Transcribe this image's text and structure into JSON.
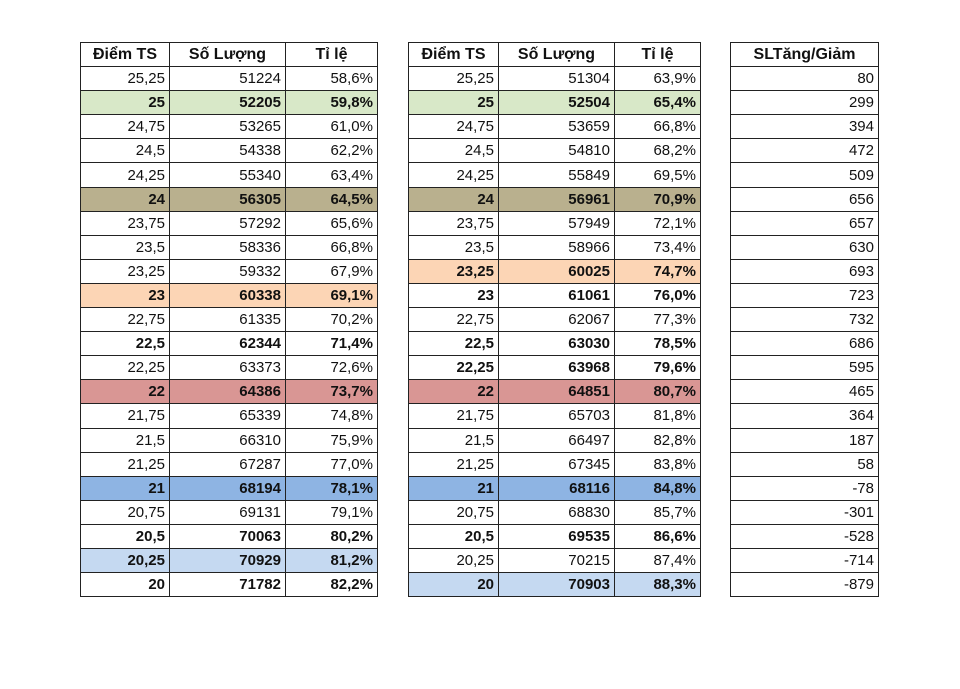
{
  "colors": {
    "green": "#d8e8c8",
    "olive": "#b9b08e",
    "peach": "#fcd5b5",
    "rose": "#d99694",
    "blue": "#8eb4e3",
    "light_blue": "#c5d9f1"
  },
  "table1": {
    "headers": [
      "Điểm TS",
      "Số Lượng",
      "Tỉ lệ"
    ],
    "rows": [
      {
        "diem": "25,25",
        "sl": "51224",
        "tl": "58,6%",
        "bold": false,
        "bg": null
      },
      {
        "diem": "25",
        "sl": "52205",
        "tl": "59,8%",
        "bold": true,
        "bg": "green"
      },
      {
        "diem": "24,75",
        "sl": "53265",
        "tl": "61,0%",
        "bold": false,
        "bg": null
      },
      {
        "diem": "24,5",
        "sl": "54338",
        "tl": "62,2%",
        "bold": false,
        "bg": null
      },
      {
        "diem": "24,25",
        "sl": "55340",
        "tl": "63,4%",
        "bold": false,
        "bg": null
      },
      {
        "diem": "24",
        "sl": "56305",
        "tl": "64,5%",
        "bold": true,
        "bg": "olive"
      },
      {
        "diem": "23,75",
        "sl": "57292",
        "tl": "65,6%",
        "bold": false,
        "bg": null
      },
      {
        "diem": "23,5",
        "sl": "58336",
        "tl": "66,8%",
        "bold": false,
        "bg": null
      },
      {
        "diem": "23,25",
        "sl": "59332",
        "tl": "67,9%",
        "bold": false,
        "bg": null
      },
      {
        "diem": "23",
        "sl": "60338",
        "tl": "69,1%",
        "bold": true,
        "bg": "peach"
      },
      {
        "diem": "22,75",
        "sl": "61335",
        "tl": "70,2%",
        "bold": false,
        "bg": null
      },
      {
        "diem": "22,5",
        "sl": "62344",
        "tl": "71,4%",
        "bold": true,
        "bg": null
      },
      {
        "diem": "22,25",
        "sl": "63373",
        "tl": "72,6%",
        "bold": false,
        "bg": null
      },
      {
        "diem": "22",
        "sl": "64386",
        "tl": "73,7%",
        "bold": true,
        "bg": "rose"
      },
      {
        "diem": "21,75",
        "sl": "65339",
        "tl": "74,8%",
        "bold": false,
        "bg": null
      },
      {
        "diem": "21,5",
        "sl": "66310",
        "tl": "75,9%",
        "bold": false,
        "bg": null
      },
      {
        "diem": "21,25",
        "sl": "67287",
        "tl": "77,0%",
        "bold": false,
        "bg": null
      },
      {
        "diem": "21",
        "sl": "68194",
        "tl": "78,1%",
        "bold": true,
        "bg": "blue"
      },
      {
        "diem": "20,75",
        "sl": "69131",
        "tl": "79,1%",
        "bold": false,
        "bg": null
      },
      {
        "diem": "20,5",
        "sl": "70063",
        "tl": "80,2%",
        "bold": true,
        "bg": null
      },
      {
        "diem": "20,25",
        "sl": "70929",
        "tl": "81,2%",
        "bold": true,
        "bg": "light_blue"
      },
      {
        "diem": "20",
        "sl": "71782",
        "tl": "82,2%",
        "bold": true,
        "bg": null
      }
    ]
  },
  "table2": {
    "headers": [
      "Điểm TS",
      "Số Lượng",
      "Tỉ lệ"
    ],
    "rows": [
      {
        "diem": "25,25",
        "sl": "51304",
        "tl": "63,9%",
        "bold": false,
        "bg": null
      },
      {
        "diem": "25",
        "sl": "52504",
        "tl": "65,4%",
        "bold": true,
        "bg": "green"
      },
      {
        "diem": "24,75",
        "sl": "53659",
        "tl": "66,8%",
        "bold": false,
        "bg": null
      },
      {
        "diem": "24,5",
        "sl": "54810",
        "tl": "68,2%",
        "bold": false,
        "bg": null
      },
      {
        "diem": "24,25",
        "sl": "55849",
        "tl": "69,5%",
        "bold": false,
        "bg": null
      },
      {
        "diem": "24",
        "sl": "56961",
        "tl": "70,9%",
        "bold": true,
        "bg": "olive"
      },
      {
        "diem": "23,75",
        "sl": "57949",
        "tl": "72,1%",
        "bold": false,
        "bg": null
      },
      {
        "diem": "23,5",
        "sl": "58966",
        "tl": "73,4%",
        "bold": false,
        "bg": null
      },
      {
        "diem": "23,25",
        "sl": "60025",
        "tl": "74,7%",
        "bold": true,
        "bg": "peach"
      },
      {
        "diem": "23",
        "sl": "61061",
        "tl": "76,0%",
        "bold": true,
        "bg": null
      },
      {
        "diem": "22,75",
        "sl": "62067",
        "tl": "77,3%",
        "bold": false,
        "bg": null
      },
      {
        "diem": "22,5",
        "sl": "63030",
        "tl": "78,5%",
        "bold": true,
        "bg": null
      },
      {
        "diem": "22,25",
        "sl": "63968",
        "tl": "79,6%",
        "bold": true,
        "bg": null
      },
      {
        "diem": "22",
        "sl": "64851",
        "tl": "80,7%",
        "bold": true,
        "bg": "rose"
      },
      {
        "diem": "21,75",
        "sl": "65703",
        "tl": "81,8%",
        "bold": false,
        "bg": null
      },
      {
        "diem": "21,5",
        "sl": "66497",
        "tl": "82,8%",
        "bold": false,
        "bg": null
      },
      {
        "diem": "21,25",
        "sl": "67345",
        "tl": "83,8%",
        "bold": false,
        "bg": null
      },
      {
        "diem": "21",
        "sl": "68116",
        "tl": "84,8%",
        "bold": true,
        "bg": "blue"
      },
      {
        "diem": "20,75",
        "sl": "68830",
        "tl": "85,7%",
        "bold": false,
        "bg": null
      },
      {
        "diem": "20,5",
        "sl": "69535",
        "tl": "86,6%",
        "bold": true,
        "bg": null
      },
      {
        "diem": "20,25",
        "sl": "70215",
        "tl": "87,4%",
        "bold": false,
        "bg": null
      },
      {
        "diem": "20",
        "sl": "70903",
        "tl": "88,3%",
        "bold": true,
        "bg": "light_blue"
      }
    ]
  },
  "table3": {
    "header": "SLTăng/Giảm",
    "values": [
      "80",
      "299",
      "394",
      "472",
      "509",
      "656",
      "657",
      "630",
      "693",
      "723",
      "732",
      "686",
      "595",
      "465",
      "364",
      "187",
      "58",
      "-78",
      "-301",
      "-528",
      "-714",
      "-879"
    ]
  }
}
